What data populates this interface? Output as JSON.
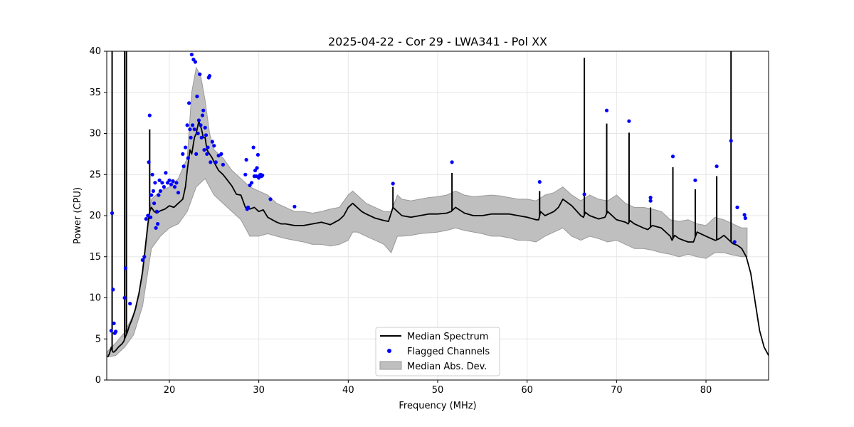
{
  "chart_data": {
    "type": "line",
    "title": "2025-04-22 - Cor 29 - LWA341 - Pol XX",
    "xlabel": "Frequency (MHz)",
    "ylabel": "Power (CPU)",
    "xlim": [
      13.0,
      87.0
    ],
    "ylim": [
      0,
      40
    ],
    "grid": true,
    "x_ticks": [
      20,
      30,
      40,
      50,
      60,
      70,
      80
    ],
    "y_ticks": [
      0,
      5,
      10,
      15,
      20,
      25,
      30,
      35,
      40
    ],
    "colors": {
      "median": "#000000",
      "flagged": "#0000ff",
      "mad": "#bfbfbf",
      "mad_edge": "#999999",
      "grid": "#e6e6e6"
    },
    "legend": {
      "position": "lower-center",
      "entries": [
        "Median Spectrum",
        "Flagged Channels",
        "Median Abs. Dev."
      ]
    },
    "series": [
      {
        "name": "Median Spectrum",
        "x": [
          13.1,
          13.3,
          13.5,
          13.6,
          13.7,
          13.8,
          13.9,
          14.0,
          14.3,
          14.7,
          14.9,
          15.0,
          15.1,
          15.3,
          15.5,
          15.8,
          16.2,
          16.6,
          17.0,
          17.3,
          17.6,
          17.8,
          18.0,
          18.3,
          18.6,
          19.0,
          19.5,
          20.0,
          20.5,
          21.0,
          21.5,
          21.8,
          22.0,
          22.3,
          22.5,
          22.8,
          23.0,
          23.3,
          23.6,
          23.8,
          24.0,
          24.2,
          24.5,
          24.8,
          25.0,
          25.5,
          26.0,
          26.5,
          27.0,
          27.5,
          28.0,
          28.5,
          29.0,
          29.5,
          30.0,
          30.5,
          31.0,
          31.5,
          32.0,
          32.5,
          33.0,
          34.0,
          35.0,
          36.0,
          37.0,
          38.0,
          39.0,
          39.5,
          40.0,
          40.5,
          41.0,
          41.5,
          42.0,
          43.0,
          44.0,
          44.5,
          45.0,
          45.5,
          46.0,
          47.0,
          48.0,
          49.0,
          50.0,
          51.0,
          51.5,
          52.0,
          53.0,
          54.0,
          55.0,
          56.0,
          57.0,
          58.0,
          59.0,
          60.0,
          61.0,
          61.3,
          61.5,
          62.0,
          63.0,
          63.5,
          64.0,
          65.0,
          66.0,
          66.3,
          66.5,
          67.0,
          68.0,
          68.7,
          69.0,
          70.0,
          71.0,
          71.3,
          71.5,
          72.0,
          73.0,
          73.5,
          74.0,
          75.0,
          76.0,
          76.2,
          76.5,
          77.0,
          78.0,
          78.6,
          79.0,
          80.0,
          81.0,
          81.1,
          81.5,
          82.0,
          82.6,
          83.0,
          83.5,
          84.0,
          84.5,
          85.0,
          85.5,
          86.0,
          86.5,
          87.0
        ],
        "y": [
          2.8,
          3.2,
          4.0,
          3.6,
          3.4,
          3.4,
          3.5,
          3.6,
          4.0,
          4.4,
          4.7,
          5.0,
          5.3,
          5.8,
          6.5,
          7.3,
          8.6,
          10.5,
          13.2,
          16.0,
          19.0,
          20.5,
          21.0,
          20.5,
          20.3,
          20.6,
          20.8,
          21.2,
          21.0,
          21.5,
          22.0,
          23.5,
          25.5,
          28.0,
          27.5,
          29.5,
          30.0,
          31.5,
          30.5,
          29.5,
          29.5,
          28.0,
          27.5,
          27.0,
          26.5,
          25.5,
          25.0,
          24.3,
          23.6,
          22.6,
          22.5,
          21.0,
          20.8,
          21.0,
          20.5,
          20.7,
          19.8,
          19.5,
          19.2,
          19.0,
          19.0,
          18.8,
          18.8,
          19.0,
          19.2,
          18.9,
          19.5,
          20.0,
          21.0,
          21.5,
          21.0,
          20.5,
          20.2,
          19.7,
          19.4,
          19.3,
          21.0,
          20.5,
          20.0,
          19.8,
          20.0,
          20.2,
          20.2,
          20.3,
          20.5,
          21.0,
          20.3,
          20.0,
          20.0,
          20.2,
          20.2,
          20.2,
          20.0,
          19.8,
          19.5,
          19.5,
          20.5,
          20.0,
          20.5,
          21.0,
          22.0,
          21.2,
          20.0,
          19.8,
          20.4,
          20.0,
          19.6,
          19.8,
          20.5,
          19.5,
          19.2,
          19.0,
          19.4,
          19.0,
          18.5,
          18.3,
          18.8,
          18.5,
          17.5,
          17.0,
          17.6,
          17.2,
          16.8,
          16.8,
          18.0,
          17.5,
          17.0,
          17.0,
          17.2,
          17.6,
          17.0,
          16.6,
          16.4,
          16.0,
          15.0,
          13.0,
          9.5,
          6.0,
          4.0,
          3.0
        ],
        "spikes": [
          {
            "x": 13.6,
            "y": 40
          },
          {
            "x": 15.0,
            "y": 40
          },
          {
            "x": 15.2,
            "y": 40
          },
          {
            "x": 17.8,
            "y": 30.5
          },
          {
            "x": 45.0,
            "y": 23.5
          },
          {
            "x": 51.6,
            "y": 25.2
          },
          {
            "x": 61.4,
            "y": 23.0
          },
          {
            "x": 66.4,
            "y": 39.2
          },
          {
            "x": 68.9,
            "y": 31.2
          },
          {
            "x": 71.4,
            "y": 30.1
          },
          {
            "x": 73.8,
            "y": 21.0
          },
          {
            "x": 76.3,
            "y": 25.9
          },
          {
            "x": 78.8,
            "y": 23.2
          },
          {
            "x": 81.2,
            "y": 24.8
          },
          {
            "x": 82.8,
            "y": 40
          }
        ]
      },
      {
        "name": "Median Abs. Dev.",
        "x": [
          13.1,
          14.0,
          15.0,
          16.0,
          17.0,
          18.0,
          19.0,
          20.0,
          21.0,
          22.0,
          22.5,
          23.0,
          23.5,
          24.0,
          24.5,
          25.0,
          26.0,
          27.0,
          28.0,
          29.0,
          30.0,
          31.0,
          32.0,
          33.0,
          34.0,
          35.0,
          36.0,
          37.0,
          38.0,
          39.0,
          40.0,
          40.5,
          41.0,
          42.0,
          43.0,
          44.0,
          44.8,
          45.5,
          46.0,
          47.0,
          48.0,
          49.0,
          50.0,
          51.0,
          52.0,
          53.0,
          54.0,
          55.0,
          56.0,
          57.0,
          58.0,
          59.0,
          60.0,
          61.0,
          62.0,
          63.0,
          64.0,
          65.0,
          66.0,
          67.0,
          68.0,
          69.0,
          70.0,
          71.0,
          72.0,
          73.0,
          74.0,
          75.0,
          76.0,
          77.0,
          78.0,
          79.0,
          80.0,
          81.0,
          82.0,
          83.0,
          84.0,
          84.6
        ],
        "upper": [
          3.5,
          4.5,
          5.8,
          8.0,
          12.5,
          22.0,
          23.0,
          23.5,
          24.5,
          27.0,
          35.0,
          38.0,
          37.0,
          34.0,
          30.0,
          28.0,
          27.0,
          25.5,
          24.5,
          23.5,
          23.0,
          22.5,
          21.5,
          21.0,
          20.5,
          20.5,
          20.3,
          20.5,
          20.8,
          21.0,
          22.5,
          23.0,
          22.5,
          21.5,
          21.0,
          20.5,
          20.5,
          22.5,
          22.0,
          21.8,
          22.0,
          22.2,
          22.3,
          22.5,
          23.0,
          22.5,
          22.3,
          22.4,
          22.5,
          22.4,
          22.2,
          22.0,
          22.0,
          21.8,
          22.5,
          22.8,
          23.5,
          22.5,
          21.8,
          22.5,
          22.0,
          21.8,
          22.5,
          21.5,
          21.0,
          21.0,
          20.8,
          20.5,
          19.5,
          19.3,
          19.5,
          19.0,
          18.8,
          19.8,
          19.5,
          19.0,
          18.5,
          18.5
        ],
        "lower": [
          2.8,
          3.0,
          4.0,
          5.5,
          9.0,
          16.0,
          17.5,
          18.5,
          19.0,
          20.5,
          22.0,
          23.5,
          24.0,
          24.5,
          23.5,
          22.5,
          21.5,
          20.5,
          19.5,
          17.5,
          17.5,
          17.8,
          17.5,
          17.2,
          17.0,
          16.8,
          16.5,
          16.5,
          16.3,
          16.5,
          17.0,
          18.0,
          18.0,
          17.5,
          17.0,
          16.5,
          15.5,
          17.5,
          17.5,
          17.6,
          17.8,
          17.9,
          18.0,
          18.2,
          18.5,
          18.2,
          18.0,
          17.8,
          17.5,
          17.5,
          17.3,
          17.0,
          17.0,
          16.8,
          17.5,
          18.0,
          18.5,
          17.5,
          17.0,
          17.5,
          17.2,
          16.8,
          17.0,
          16.5,
          16.0,
          16.0,
          15.8,
          15.5,
          15.3,
          15.0,
          15.3,
          15.0,
          14.8,
          15.5,
          15.5,
          15.2,
          15.0,
          15.0
        ]
      },
      {
        "name": "Flagged Channels",
        "type": "scatter",
        "x": [
          13.5,
          13.6,
          13.7,
          13.8,
          13.9,
          14.0,
          15.0,
          15.1,
          15.6,
          17.0,
          17.2,
          17.4,
          17.6,
          17.7,
          17.8,
          17.9,
          18.0,
          18.1,
          18.2,
          18.3,
          18.4,
          18.5,
          18.6,
          18.7,
          18.8,
          18.9,
          19.0,
          19.2,
          19.4,
          19.6,
          19.8,
          20.0,
          20.2,
          20.4,
          20.6,
          20.8,
          21.0,
          21.5,
          21.6,
          21.8,
          22.0,
          22.1,
          22.2,
          22.3,
          22.4,
          22.5,
          22.6,
          22.7,
          22.8,
          22.9,
          23.0,
          23.1,
          23.2,
          23.3,
          23.4,
          23.5,
          23.6,
          23.7,
          23.8,
          23.9,
          24.0,
          24.1,
          24.2,
          24.3,
          24.4,
          24.5,
          24.6,
          24.8,
          25.0,
          25.2,
          25.5,
          25.8,
          26.0,
          28.5,
          28.6,
          28.7,
          28.8,
          29.0,
          29.2,
          29.4,
          29.5,
          29.6,
          29.7,
          29.8,
          29.9,
          30.0,
          30.1,
          30.2,
          30.3,
          30.4,
          31.3,
          34.0,
          45.0,
          51.6,
          61.4,
          66.4,
          68.9,
          71.4,
          73.8,
          73.8,
          76.3,
          78.8,
          81.2,
          82.8,
          83.2,
          83.5,
          84.3,
          84.4
        ],
        "y": [
          6.0,
          20.3,
          11.0,
          6.9,
          5.7,
          5.9,
          10.0,
          13.6,
          9.3,
          14.6,
          15.0,
          19.6,
          20.0,
          26.5,
          32.2,
          19.8,
          22.5,
          25.0,
          23.0,
          21.5,
          24.0,
          18.5,
          20.5,
          19.0,
          22.5,
          24.3,
          23.0,
          24.0,
          23.5,
          25.2,
          24.0,
          24.3,
          23.8,
          24.2,
          23.5,
          24.0,
          22.8,
          27.5,
          26.0,
          28.3,
          31.0,
          27.0,
          33.7,
          30.5,
          29.5,
          39.6,
          31.0,
          39.0,
          30.5,
          38.7,
          27.5,
          34.5,
          30.0,
          31.6,
          37.2,
          31.0,
          29.5,
          32.2,
          32.8,
          28.0,
          30.7,
          29.8,
          27.5,
          28.3,
          36.8,
          37.0,
          26.5,
          29.0,
          28.5,
          26.5,
          27.3,
          27.5,
          26.2,
          25.0,
          26.8,
          20.8,
          21.0,
          23.7,
          24.0,
          28.3,
          24.8,
          25.5,
          24.8,
          25.8,
          27.4,
          24.6,
          24.9,
          25.0,
          24.8,
          24.9,
          22.0,
          21.1,
          23.9,
          26.5,
          24.1,
          22.6,
          32.8,
          31.5,
          22.2,
          21.8,
          27.2,
          24.3,
          26.0,
          29.1,
          16.8,
          21.0,
          20.1,
          19.7
        ]
      }
    ]
  }
}
